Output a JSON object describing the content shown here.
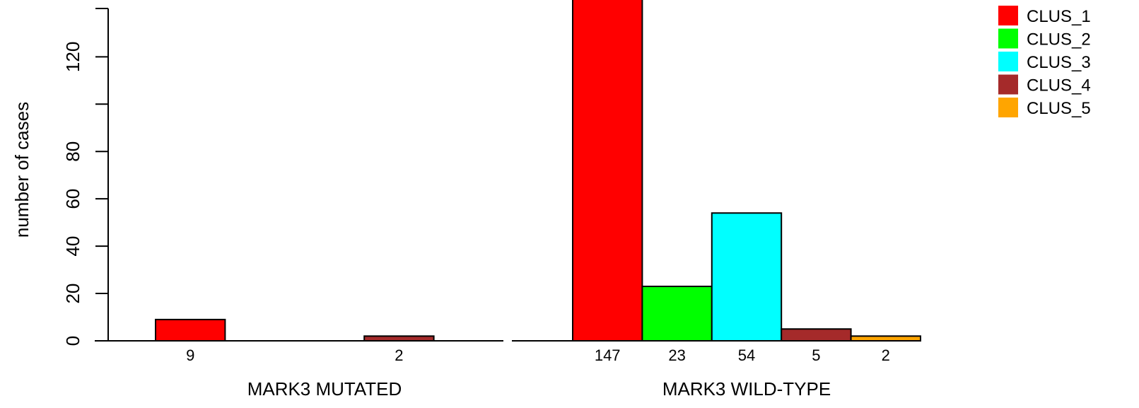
{
  "chart_data": {
    "type": "bar",
    "ylabel": "number of cases",
    "yticks": [
      0,
      20,
      40,
      60,
      80,
      100,
      120
    ],
    "ytick_labels": [
      "0",
      "20",
      "40",
      "60",
      "80",
      "",
      "120"
    ],
    "ylim": [
      0,
      140
    ],
    "legend": {
      "placement": "top-right",
      "entries": [
        {
          "name": "CLUS_1",
          "color": "#ff0000"
        },
        {
          "name": "CLUS_2",
          "color": "#00ff00"
        },
        {
          "name": "CLUS_3",
          "color": "#00ffff"
        },
        {
          "name": "CLUS_4",
          "color": "#a52a2a"
        },
        {
          "name": "CLUS_5",
          "color": "#ffa500"
        }
      ]
    },
    "groups": [
      {
        "label": "MARK3 MUTATED",
        "values": [
          9,
          0,
          0,
          2,
          0
        ],
        "value_labels": [
          "9",
          "",
          "",
          "2",
          ""
        ]
      },
      {
        "label": "MARK3 WILD-TYPE",
        "values": [
          147,
          23,
          54,
          5,
          2
        ],
        "value_labels": [
          "147",
          "23",
          "54",
          "5",
          "2"
        ]
      }
    ]
  }
}
